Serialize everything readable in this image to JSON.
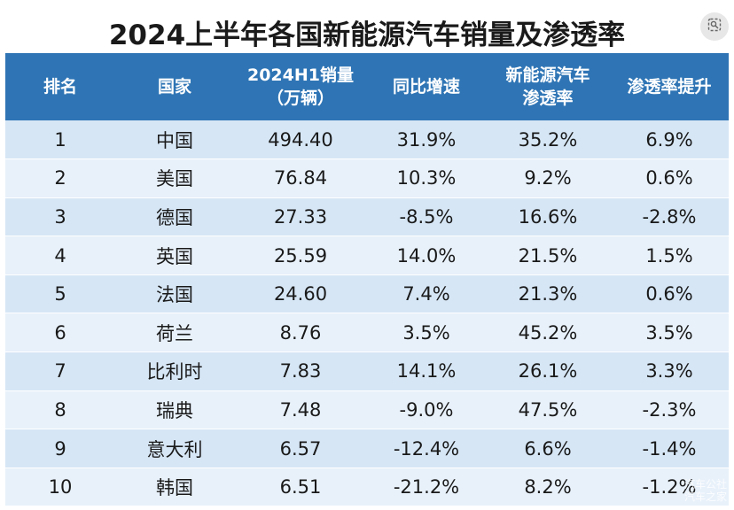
{
  "title": "2024上半年各国新能源汽车销量及渗透率",
  "lens_icon": "image-search-icon",
  "colors": {
    "header_bg": "#2f75b5",
    "row_odd": "#d6e6f5",
    "row_even": "#e8f1fa"
  },
  "table": {
    "headers": [
      {
        "line1": "排名",
        "line2": ""
      },
      {
        "line1": "国家",
        "line2": ""
      },
      {
        "line1": "2024H1销量",
        "line2": "（万辆）"
      },
      {
        "line1": "同比增速",
        "line2": ""
      },
      {
        "line1": "新能源汽车",
        "line2": "渗透率"
      },
      {
        "line1": "渗透率提升",
        "line2": ""
      }
    ],
    "rows": [
      [
        "1",
        "中国",
        "494.40",
        "31.9%",
        "35.2%",
        "6.9%"
      ],
      [
        "2",
        "美国",
        "76.84",
        "10.3%",
        "9.2%",
        "0.6%"
      ],
      [
        "3",
        "德国",
        "27.33",
        "-8.5%",
        "16.6%",
        "-2.8%"
      ],
      [
        "4",
        "英国",
        "25.59",
        "14.0%",
        "21.5%",
        "1.5%"
      ],
      [
        "5",
        "法国",
        "24.60",
        "7.4%",
        "21.3%",
        "0.6%"
      ],
      [
        "6",
        "荷兰",
        "8.76",
        "3.5%",
        "45.2%",
        "3.5%"
      ],
      [
        "7",
        "比利时",
        "7.83",
        "14.1%",
        "26.1%",
        "3.3%"
      ],
      [
        "8",
        "瑞典",
        "7.48",
        "-9.0%",
        "47.5%",
        "-2.3%"
      ],
      [
        "9",
        "意大利",
        "6.57",
        "-12.4%",
        "6.6%",
        "-1.4%"
      ],
      [
        "10",
        "韩国",
        "6.51",
        "-21.2%",
        "8.2%",
        "-1.2%"
      ]
    ]
  },
  "watermark": {
    "line1": "汽车公社",
    "line2": "汽车之家"
  }
}
